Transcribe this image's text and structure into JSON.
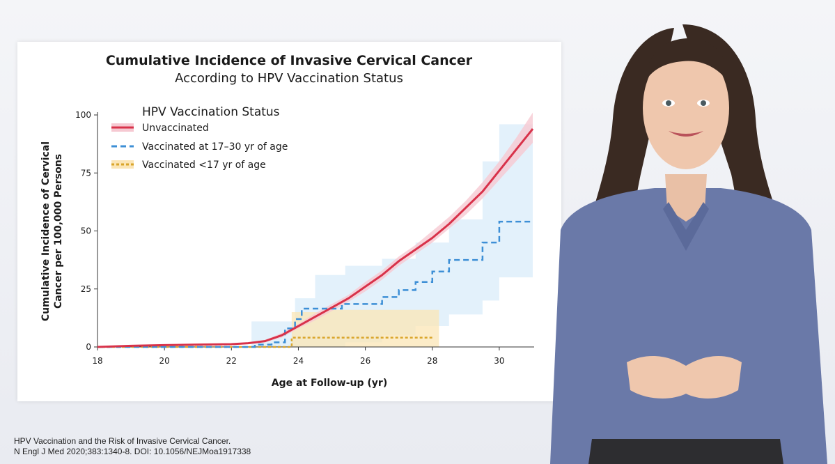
{
  "colors": {
    "unvaccinated": "#d8324a",
    "vaccinated_17_30": "#3d8fd6",
    "vaccinated_under_17": "#d9a52b",
    "band_unvaccinated": "#f6c9d2",
    "band_17_30": "#d9ecfa",
    "band_under_17": "#fbe5b6"
  },
  "chart_data": {
    "type": "line",
    "title": "Cumulative Incidence of Invasive Cervical Cancer",
    "subtitle": "According to HPV Vaccination Status",
    "xlabel": "Age at Follow-up (yr)",
    "ylabel_lines": [
      "Cumulative Incidence of Cervical",
      "Cancer per 100,000 Persons"
    ],
    "xlim": [
      18,
      31
    ],
    "ylim": [
      0,
      100
    ],
    "xticks": [
      18,
      20,
      22,
      24,
      26,
      28,
      30
    ],
    "yticks": [
      0,
      25,
      50,
      75,
      100
    ],
    "legend": {
      "title": "HPV Vaccination Status",
      "placement": "top-left"
    },
    "series": [
      {
        "name": "Unvaccinated",
        "style": "solid",
        "step": false,
        "points": [
          [
            18,
            0
          ],
          [
            19,
            0.5
          ],
          [
            20,
            0.8
          ],
          [
            21,
            1
          ],
          [
            22,
            1.2
          ],
          [
            22.5,
            1.6
          ],
          [
            23,
            2.5
          ],
          [
            23.5,
            5
          ],
          [
            24,
            9
          ],
          [
            24.5,
            13
          ],
          [
            25,
            17
          ],
          [
            25.5,
            21
          ],
          [
            26,
            26
          ],
          [
            26.5,
            31
          ],
          [
            27,
            37
          ],
          [
            27.5,
            42
          ],
          [
            28,
            47
          ],
          [
            28.5,
            53
          ],
          [
            29,
            60
          ],
          [
            29.5,
            67
          ],
          [
            30,
            76
          ],
          [
            30.5,
            85
          ],
          [
            31,
            94
          ]
        ],
        "ci_lower": [
          [
            18,
            0
          ],
          [
            19,
            0.3
          ],
          [
            20,
            0.6
          ],
          [
            21,
            0.8
          ],
          [
            22,
            1
          ],
          [
            22.5,
            1.2
          ],
          [
            23,
            2
          ],
          [
            23.5,
            4
          ],
          [
            24,
            8
          ],
          [
            24.5,
            11.5
          ],
          [
            25,
            15.5
          ],
          [
            25.5,
            19.5
          ],
          [
            26,
            24
          ],
          [
            26.5,
            29
          ],
          [
            27,
            35
          ],
          [
            27.5,
            40
          ],
          [
            28,
            45
          ],
          [
            28.5,
            51
          ],
          [
            29,
            57
          ],
          [
            29.5,
            64
          ],
          [
            30,
            72
          ],
          [
            30.5,
            80
          ],
          [
            31,
            88
          ]
        ],
        "ci_upper": [
          [
            18,
            0.3
          ],
          [
            19,
            0.8
          ],
          [
            20,
            1
          ],
          [
            21,
            1.2
          ],
          [
            22,
            1.5
          ],
          [
            22.5,
            2
          ],
          [
            23,
            3
          ],
          [
            23.5,
            6
          ],
          [
            24,
            10
          ],
          [
            24.5,
            14.5
          ],
          [
            25,
            18.5
          ],
          [
            25.5,
            22.5
          ],
          [
            26,
            28
          ],
          [
            26.5,
            33
          ],
          [
            27,
            39
          ],
          [
            27.5,
            44
          ],
          [
            28,
            50
          ],
          [
            28.5,
            56
          ],
          [
            29,
            63
          ],
          [
            29.5,
            71
          ],
          [
            30,
            80
          ],
          [
            30.5,
            90
          ],
          [
            31,
            101
          ]
        ]
      },
      {
        "name": "Vaccinated at 17–30 yr of age",
        "style": "dashed",
        "step": true,
        "points": [
          [
            18,
            0
          ],
          [
            22.7,
            0
          ],
          [
            22.7,
            1
          ],
          [
            23.2,
            1
          ],
          [
            23.2,
            2
          ],
          [
            23.6,
            2
          ],
          [
            23.6,
            8
          ],
          [
            23.9,
            8
          ],
          [
            23.9,
            12
          ],
          [
            24.1,
            12
          ],
          [
            24.1,
            16.5
          ],
          [
            25.3,
            16.5
          ],
          [
            25.3,
            18.5
          ],
          [
            26.5,
            18.5
          ],
          [
            26.5,
            21.5
          ],
          [
            27,
            21.5
          ],
          [
            27,
            24.5
          ],
          [
            27.5,
            24.5
          ],
          [
            27.5,
            28
          ],
          [
            28,
            28
          ],
          [
            28,
            32.5
          ],
          [
            28.5,
            32.5
          ],
          [
            28.5,
            37.5
          ],
          [
            29.5,
            37.5
          ],
          [
            29.5,
            45
          ],
          [
            30,
            45
          ],
          [
            30,
            54
          ],
          [
            31,
            54
          ]
        ],
        "ci_box_steps": [
          [
            18,
            0,
            0.3
          ],
          [
            22.6,
            0,
            11
          ],
          [
            23.9,
            0,
            21
          ],
          [
            24.5,
            0,
            31
          ],
          [
            25.4,
            2,
            35
          ],
          [
            26.5,
            5,
            38
          ],
          [
            27.5,
            9,
            45
          ],
          [
            28.5,
            14,
            55
          ],
          [
            29.5,
            20,
            80
          ],
          [
            30,
            30,
            96
          ],
          [
            31,
            30,
            96
          ]
        ]
      },
      {
        "name": "Vaccinated <17 yr of age",
        "style": "dashed",
        "step": true,
        "points": [
          [
            18,
            0
          ],
          [
            23.8,
            0
          ],
          [
            23.8,
            4
          ],
          [
            28.0,
            4
          ]
        ],
        "ci_box_steps": [
          [
            18,
            0,
            0.3
          ],
          [
            23.8,
            0,
            15
          ],
          [
            24.8,
            0,
            16
          ],
          [
            28.2,
            0,
            16
          ]
        ]
      }
    ]
  },
  "citation": {
    "line1": "HPV Vaccination and the Risk of Invasive Cervical Cancer.",
    "line2": "N Engl J Med 2020;383:1340-8. DOI: 10.1056/NEJMoa1917338"
  }
}
